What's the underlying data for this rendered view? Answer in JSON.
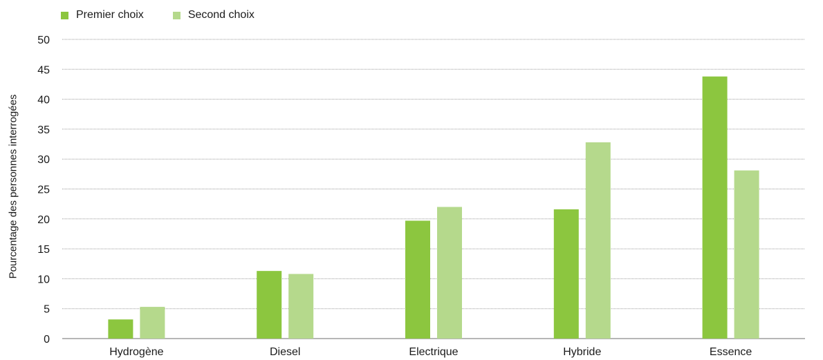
{
  "chart_data": {
    "type": "bar",
    "categories": [
      "Hydrogène",
      "Diesel",
      "Electrique",
      "Hybride",
      "Essence"
    ],
    "series": [
      {
        "name": "Premier choix",
        "values": [
          3.2,
          11.3,
          19.7,
          21.6,
          43.8
        ],
        "color": "#8cc63f"
      },
      {
        "name": "Second choix",
        "values": [
          5.3,
          10.8,
          22.0,
          32.8,
          28.1
        ],
        "color": "#b5d98c"
      }
    ],
    "title": "",
    "xlabel": "",
    "ylabel": "Pourcentage des personnes interrogées",
    "ylim": [
      0,
      50
    ],
    "yticks": [
      0,
      5,
      10,
      15,
      20,
      25,
      30,
      35,
      40,
      45,
      50
    ],
    "grid": true,
    "legend_position": "top-left"
  }
}
